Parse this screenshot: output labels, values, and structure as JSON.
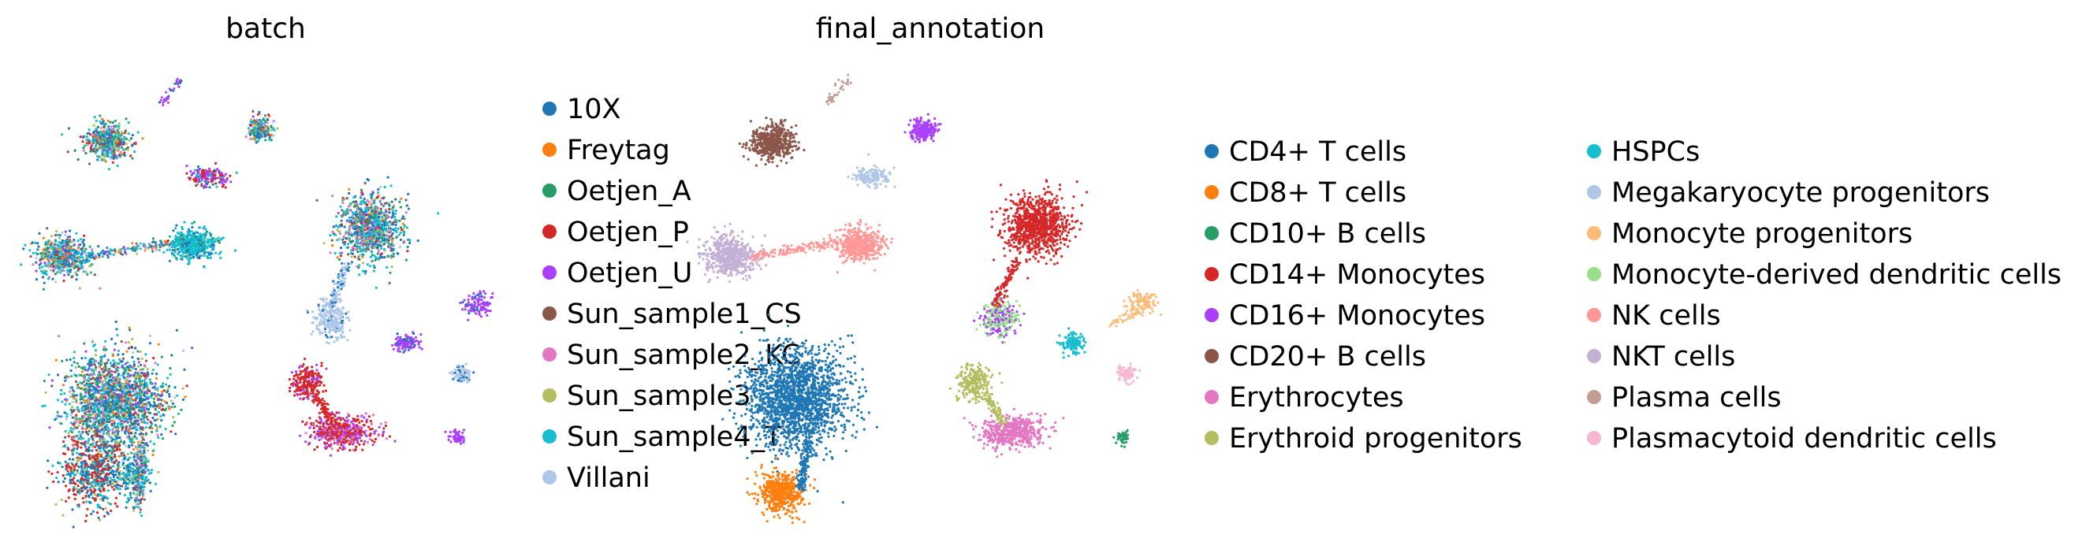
{
  "chart_data": [
    {
      "type": "scatter",
      "title": "batch",
      "xlabel": "",
      "ylabel": "",
      "grid": false,
      "axes_visible": false,
      "legend_placement": "right",
      "legend": [
        {
          "label": "10X",
          "color": "#1f77b4"
        },
        {
          "label": "Freytag",
          "color": "#ff7f0e"
        },
        {
          "label": "Oetjen_A",
          "color": "#279e68"
        },
        {
          "label": "Oetjen_P",
          "color": "#d62728"
        },
        {
          "label": "Oetjen_U",
          "color": "#aa40fc"
        },
        {
          "label": "Sun_sample1_CS",
          "color": "#8c564b"
        },
        {
          "label": "Sun_sample2_KC",
          "color": "#e377c2"
        },
        {
          "label": "Sun_sample3",
          "color": "#b5bd61"
        },
        {
          "label": "Sun_sample4_T",
          "color": "#17becf"
        },
        {
          "label": "Villani",
          "color": "#aec7e8"
        }
      ]
    },
    {
      "type": "scatter",
      "title": "final_annotation",
      "xlabel": "",
      "ylabel": "",
      "grid": false,
      "axes_visible": false,
      "legend_placement": "right",
      "legend": [
        {
          "label": "CD4+ T cells",
          "color": "#1f77b4"
        },
        {
          "label": "CD8+ T cells",
          "color": "#ff7f0e"
        },
        {
          "label": "CD10+ B cells",
          "color": "#279e68"
        },
        {
          "label": "CD14+ Monocytes",
          "color": "#d62728"
        },
        {
          "label": "CD16+ Monocytes",
          "color": "#aa40fc"
        },
        {
          "label": "CD20+ B cells",
          "color": "#8c564b"
        },
        {
          "label": "Erythrocytes",
          "color": "#e377c2"
        },
        {
          "label": "Erythroid progenitors",
          "color": "#b5bd61"
        },
        {
          "label": "HSPCs",
          "color": "#17becf"
        },
        {
          "label": "Megakaryocyte progenitors",
          "color": "#aec7e8"
        },
        {
          "label": "Monocyte progenitors",
          "color": "#ffbb78"
        },
        {
          "label": "Monocyte-derived dendritic cells",
          "color": "#98df8a"
        },
        {
          "label": "NK cells",
          "color": "#ff9896"
        },
        {
          "label": "NKT cells",
          "color": "#c5b0d5"
        },
        {
          "label": "Plasma cells",
          "color": "#c49c94"
        },
        {
          "label": "Plasmacytoid dendritic cells",
          "color": "#f7b6d2"
        }
      ]
    }
  ]
}
